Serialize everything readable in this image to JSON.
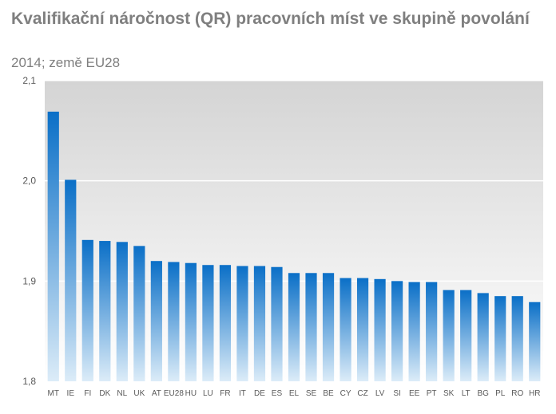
{
  "chart_data": {
    "type": "bar",
    "title": "Kvalifikační náročnost (QR)  pracovních míst ve skupině povolání",
    "subtitle": "2014; země EU28",
    "ylim": [
      1.8,
      2.1
    ],
    "yticks": [
      "1,8",
      "1,9",
      "2,0",
      "2,1"
    ],
    "grid": true,
    "categories": [
      "MT",
      "IE",
      "FI",
      "DK",
      "NL",
      "UK",
      "AT",
      "EU28",
      "HU",
      "LU",
      "FR",
      "IT",
      "DE",
      "ES",
      "EL",
      "SE",
      "BE",
      "CY",
      "CZ",
      "LV",
      "SI",
      "EE",
      "PT",
      "SK",
      "LT",
      "BG",
      "PL",
      "RO",
      "HR"
    ],
    "values": [
      2.069,
      2.001,
      1.941,
      1.94,
      1.939,
      1.935,
      1.92,
      1.919,
      1.918,
      1.916,
      1.916,
      1.915,
      1.915,
      1.914,
      1.908,
      1.908,
      1.908,
      1.903,
      1.903,
      1.902,
      1.9,
      1.899,
      1.899,
      1.891,
      1.891,
      1.888,
      1.885,
      1.885,
      1.879
    ],
    "colors": {
      "bar_top": "#0a6fc7",
      "bar_bottom": "#dcecf8",
      "plot_top": "#d4d4d4",
      "plot_bottom": "#ffffff",
      "text": "#595959",
      "title": "#7f7f7f"
    }
  }
}
